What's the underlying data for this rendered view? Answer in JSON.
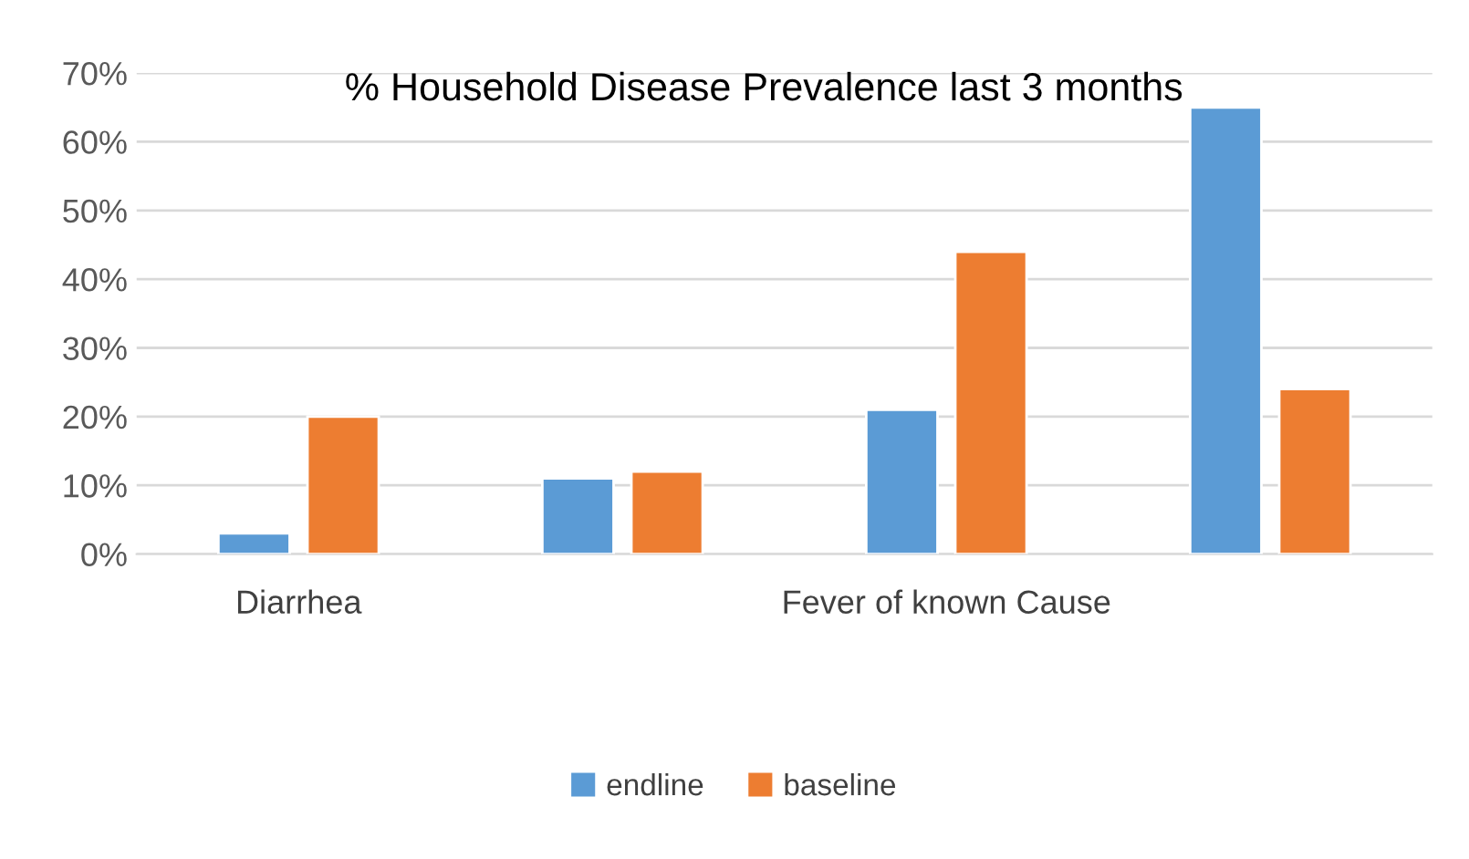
{
  "chart_data": {
    "type": "bar",
    "title": "% Household Disease Prevalence last 3 months",
    "categories": [
      "Diarrhea",
      null,
      "Fever of known Cause",
      null
    ],
    "series": [
      {
        "name": "endline",
        "color": "#5b9bd5",
        "values": [
          3,
          11,
          21,
          65
        ]
      },
      {
        "name": "baseline",
        "color": "#ed7d31",
        "values": [
          20,
          12,
          44,
          24
        ]
      }
    ],
    "ylim": [
      0,
      70
    ],
    "yticks": [
      {
        "value": 0,
        "label": "0%"
      },
      {
        "value": 10,
        "label": "10%"
      },
      {
        "value": 20,
        "label": "20%"
      },
      {
        "value": 30,
        "label": "30%"
      },
      {
        "value": 40,
        "label": "40%"
      },
      {
        "value": 50,
        "label": "50%"
      },
      {
        "value": 60,
        "label": "60%"
      },
      {
        "value": 70,
        "label": "70%"
      }
    ],
    "grid": "y",
    "legend": "bottom"
  }
}
